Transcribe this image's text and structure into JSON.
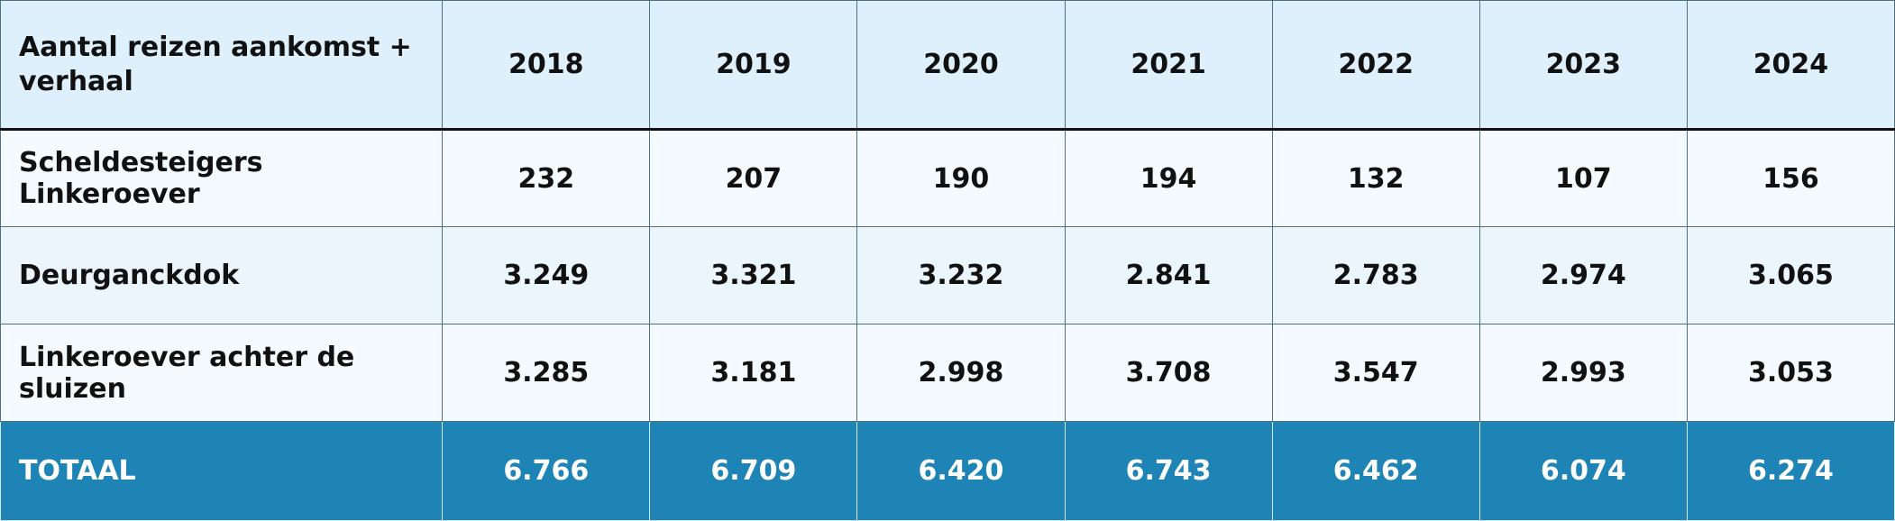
{
  "chart_data": {
    "type": "table",
    "columns": [
      "Aantal reizen aankomst + verhaal",
      "2018",
      "2019",
      "2020",
      "2021",
      "2022",
      "2023",
      "2024"
    ],
    "rows": [
      {
        "label": "Scheldesteigers Linkeroever",
        "values": [
          "232",
          "207",
          "190",
          "194",
          "132",
          "107",
          "156"
        ]
      },
      {
        "label": "Deurganckdok",
        "values": [
          "3.249",
          "3.321",
          "3.232",
          "2.841",
          "2.783",
          "2.974",
          "3.065"
        ]
      },
      {
        "label": "Linkeroever achter de sluizen",
        "values": [
          "3.285",
          "3.181",
          "2.998",
          "3.708",
          "3.547",
          "2.993",
          "3.053"
        ]
      }
    ],
    "total": {
      "label": "TOTAAL",
      "values": [
        "6.766",
        "6.709",
        "6.420",
        "6.743",
        "6.462",
        "6.074",
        "6.274"
      ]
    },
    "colors": {
      "header_bg": "#ddf0fb",
      "row_bg_light": "#f4fafe",
      "row_bg_alt": "#eaf5fc",
      "total_bg": "#1e84b6",
      "total_text": "#ffffff"
    }
  }
}
